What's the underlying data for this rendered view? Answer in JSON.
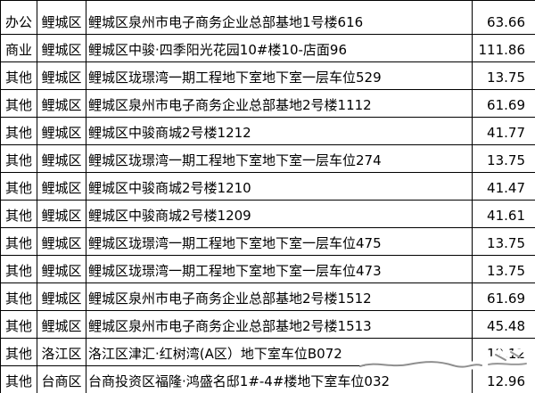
{
  "colors": {
    "background": "#ffffff",
    "border": "#000000",
    "text": "#000000",
    "watermark_scribble": "#ffffff",
    "watermark_smudge": "#8f8f8f"
  },
  "table": {
    "columns": [
      {
        "key": "type"
      },
      {
        "key": "district"
      },
      {
        "key": "address"
      },
      {
        "key": "value"
      }
    ],
    "rows": [
      {
        "type": "办公",
        "district": "鲤城区",
        "address": "鲤城区泉州市电子商务企业总部基地1号楼616",
        "value": "63.66"
      },
      {
        "type": "商业",
        "district": "鲤城区",
        "address": "鲤城区中骏·四季阳光花园10#楼10-店面96",
        "value": "111.86"
      },
      {
        "type": "其他",
        "district": "鲤城区",
        "address": "鲤城区珑璟湾一期工程地下室地下室一层车位529",
        "value": "13.75"
      },
      {
        "type": "其他",
        "district": "鲤城区",
        "address": "鲤城区泉州市电子商务企业总部基地2号楼1112",
        "value": "61.69"
      },
      {
        "type": "其他",
        "district": "鲤城区",
        "address": "鲤城区中骏商城2号楼1212",
        "value": "41.77"
      },
      {
        "type": "其他",
        "district": "鲤城区",
        "address": "鲤城区珑璟湾一期工程地下室地下室一层车位274",
        "value": "13.75"
      },
      {
        "type": "其他",
        "district": "鲤城区",
        "address": "鲤城区中骏商城2号楼1210",
        "value": "41.47"
      },
      {
        "type": "其他",
        "district": "鲤城区",
        "address": "鲤城区中骏商城2号楼1209",
        "value": "41.61"
      },
      {
        "type": "其他",
        "district": "鲤城区",
        "address": "鲤城区珑璟湾一期工程地下室地下室一层车位475",
        "value": "13.75"
      },
      {
        "type": "其他",
        "district": "鲤城区",
        "address": "鲤城区珑璟湾一期工程地下室地下室一层车位473",
        "value": "13.75"
      },
      {
        "type": "其他",
        "district": "鲤城区",
        "address": "鲤城区泉州市电子商务企业总部基地2号楼1512",
        "value": "61.69"
      },
      {
        "type": "其他",
        "district": "鲤城区",
        "address": "鲤城区泉州市电子商务企业总部基地2号楼1513",
        "value": "45.48"
      },
      {
        "type": "其他",
        "district": "洛江区",
        "address": "洛江区津汇·红树湾(A区）地下室车位B072",
        "value": "12.12"
      },
      {
        "type": "其他",
        "district": "台商区",
        "address": "台商投资区福隆·鸿盛名邸1#-4#楼地下室车位032",
        "value": "12.96"
      }
    ]
  }
}
